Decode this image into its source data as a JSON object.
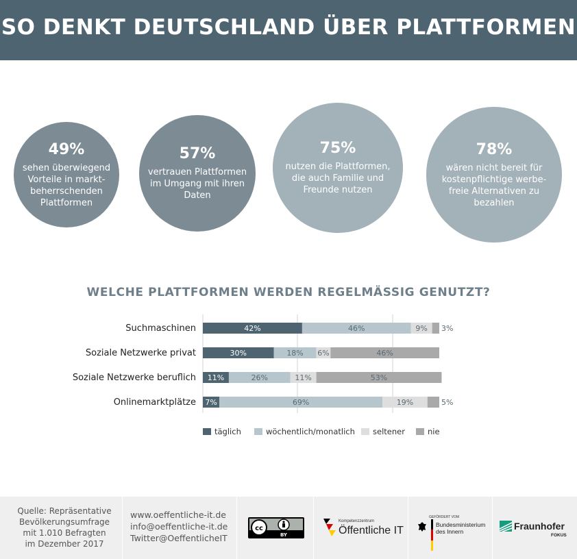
{
  "header": {
    "title": "SO DENKT DEUTSCHLAND ÜBER PLATTFORMEN"
  },
  "stats": [
    {
      "value": "49%",
      "text": "sehen überwiegend Vorteile in markt-beherrschenden Plattformen",
      "lines": [
        "sehen überwiegend",
        "Vorteile in markt-",
        "beherrschenden",
        "Plattformen"
      ],
      "color": "#7c8b94"
    },
    {
      "value": "57%",
      "text": "vertrauen Plattformen im Umgang mit ihren Daten",
      "lines": [
        "vertrauen Plattformen",
        "im Umgang mit ihren",
        "Daten"
      ],
      "color": "#7c8b94"
    },
    {
      "value": "75%",
      "text": "nutzen die Plattformen, die auch Familie und Freunde nutzen",
      "lines": [
        "nutzen die Plattformen,",
        "die auch Familie und",
        "Freunde nutzen"
      ],
      "color": "#a3b1b8"
    },
    {
      "value": "78%",
      "text": "wären nicht bereit für kostenpflichtige werbefreie Alternativen zu bezahlen",
      "lines": [
        "wären nicht bereit für",
        "kostenpflichtige werbe-",
        "freie Alternativen zu",
        "bezahlen"
      ],
      "color": "#a3b1b8"
    }
  ],
  "chart_data": {
    "type": "bar",
    "orientation": "horizontal",
    "stacked": true,
    "title": "WELCHE PLATTFORMEN WERDEN REGELMÄSSIG GENUTZT?",
    "categories": [
      "Suchmaschinen",
      "Soziale Netzwerke privat",
      "Soziale Netzwerke beruflich",
      "Onlinemarktplätze"
    ],
    "series": [
      {
        "name": "täglich",
        "color": "#4e6470",
        "values": [
          42,
          30,
          11,
          7
        ]
      },
      {
        "name": "wöchentlich/monatlich",
        "color": "#b7c5cc",
        "values": [
          46,
          18,
          26,
          69
        ]
      },
      {
        "name": "seltener",
        "color": "#dedede",
        "values": [
          9,
          6,
          11,
          19
        ]
      },
      {
        "name": "nie",
        "color": "#a9a9a9",
        "values": [
          3,
          46,
          53,
          5
        ]
      }
    ],
    "labels": [
      [
        "42%",
        "46%",
        "9%",
        "3%"
      ],
      [
        "30%",
        "18%",
        "6%",
        "46%"
      ],
      [
        "11%",
        "26%",
        "11%",
        "53%"
      ],
      [
        "7%",
        "69%",
        "19%",
        "5%"
      ]
    ],
    "xlim": [
      0,
      100
    ],
    "grid": true,
    "legend": "bottom"
  },
  "footer": {
    "source_lines": [
      "Quelle: Repräsentative",
      "Bevölkerungsumfrage",
      "mit 1.010 Befragten",
      "im Dezember 2017"
    ],
    "contact_lines": [
      "www.oeffentliche-it.de",
      "info@oeffentliche-it.de",
      "Twitter@OeffentlicheIT"
    ],
    "cc_label": "BY",
    "kompetenz_small": "Kompetenzzentrum",
    "kompetenz_big": "Öffentliche IT",
    "bmi_small": "GEFÖRDERT VOM",
    "bmi_lines": [
      "Bundesministerium",
      "des Innern"
    ],
    "fraunhofer": "Fraunhofer",
    "fokus": "FOKUS"
  }
}
